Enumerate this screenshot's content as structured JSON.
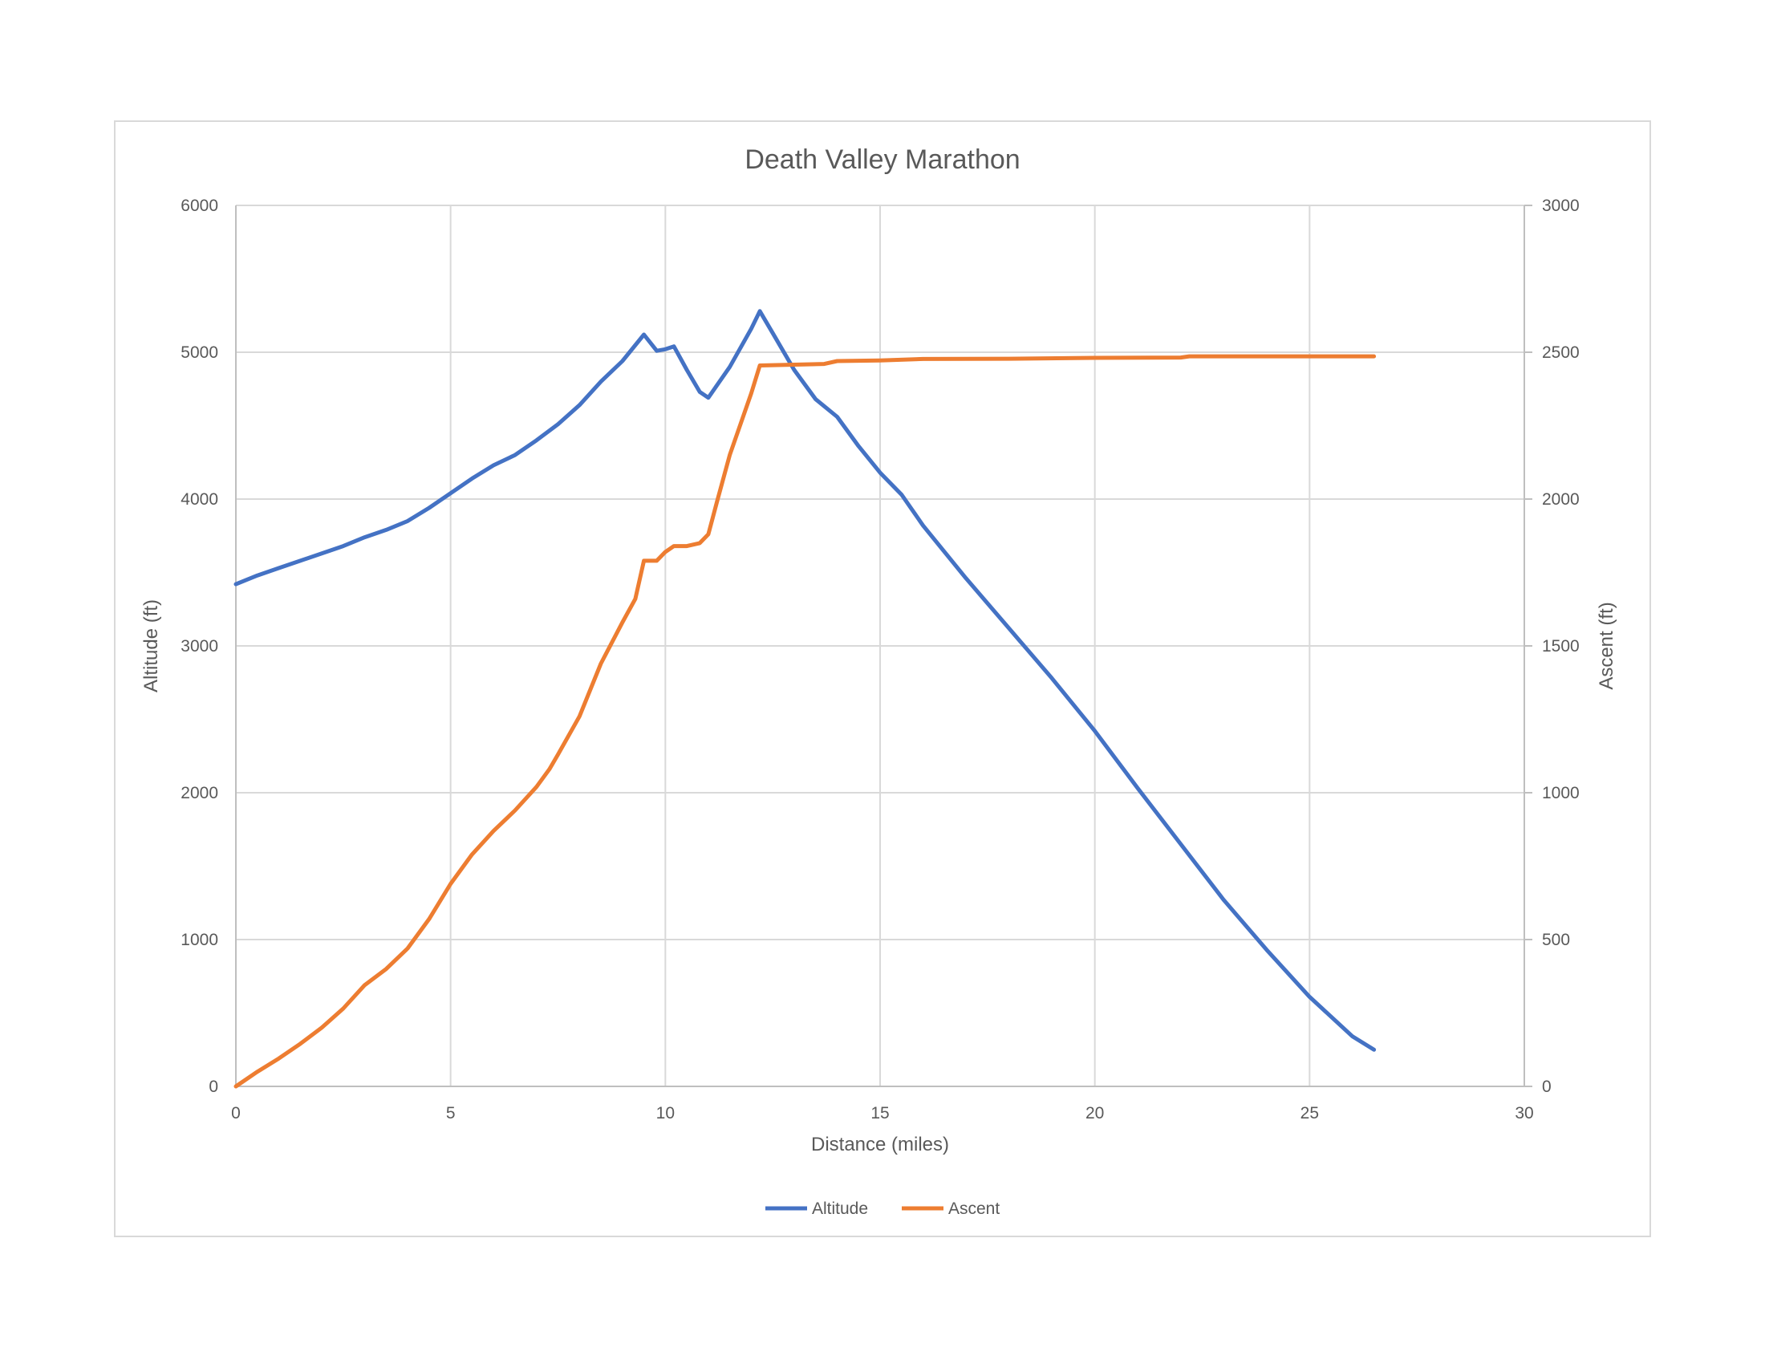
{
  "chart_data": {
    "type": "line",
    "title": "Death Valley Marathon",
    "xlabel": "Distance (miles)",
    "ylabel": "Altitude (ft)",
    "y2label": "Ascent (ft)",
    "xlim": [
      0,
      30
    ],
    "ylim": [
      0,
      6000
    ],
    "y2lim": [
      0,
      3000
    ],
    "x_ticks": [
      "0",
      "5",
      "10",
      "15",
      "20",
      "25",
      "30"
    ],
    "y_ticks": [
      "0",
      "1000",
      "2000",
      "3000",
      "4000",
      "5000",
      "6000"
    ],
    "y2_ticks": [
      "0",
      "500",
      "1000",
      "1500",
      "2000",
      "2500",
      "3000"
    ],
    "grid": true,
    "legend": "bottom",
    "series": [
      {
        "name": "Altitude",
        "axis": "left",
        "color": "#4472C4",
        "x": [
          0,
          0.5,
          1,
          1.5,
          2,
          2.5,
          3,
          3.5,
          4,
          4.5,
          5,
          5.5,
          6,
          6.5,
          7,
          7.5,
          8,
          8.5,
          9,
          9.5,
          9.8,
          10,
          10.2,
          10.5,
          10.8,
          11,
          11.5,
          12,
          12.2,
          12.5,
          13,
          13.5,
          14,
          14.5,
          15,
          15.5,
          16,
          17,
          18,
          19,
          20,
          21,
          22,
          23,
          24,
          25,
          26,
          26.5
        ],
        "y": [
          3420,
          3480,
          3530,
          3580,
          3630,
          3680,
          3740,
          3790,
          3850,
          3940,
          4040,
          4140,
          4230,
          4300,
          4400,
          4510,
          4640,
          4800,
          4940,
          5120,
          5010,
          5020,
          5040,
          4880,
          4730,
          4690,
          4900,
          5160,
          5280,
          5130,
          4880,
          4680,
          4560,
          4360,
          4180,
          4030,
          3820,
          3460,
          3120,
          2780,
          2420,
          2030,
          1650,
          1270,
          930,
          610,
          340,
          250
        ]
      },
      {
        "name": "Ascent",
        "axis": "right",
        "color": "#ED7D31",
        "x": [
          0,
          0.5,
          1,
          1.5,
          2,
          2.5,
          3,
          3.5,
          4,
          4.5,
          5,
          5.5,
          6,
          6.5,
          7,
          7.3,
          7.5,
          8,
          8.5,
          9,
          9.3,
          9.5,
          9.8,
          10,
          10.2,
          10.5,
          10.8,
          11,
          11.2,
          11.5,
          12,
          12.2,
          13.7,
          14,
          15,
          16,
          18,
          20,
          22,
          22.2,
          25,
          26.5
        ],
        "y": [
          0,
          50,
          95,
          145,
          200,
          265,
          345,
          400,
          470,
          570,
          690,
          790,
          870,
          940,
          1020,
          1080,
          1130,
          1260,
          1440,
          1580,
          1660,
          1790,
          1790,
          1820,
          1840,
          1840,
          1850,
          1880,
          1990,
          2150,
          2360,
          2455,
          2460,
          2470,
          2472,
          2477,
          2478,
          2481,
          2482,
          2486,
          2486,
          2486
        ]
      }
    ]
  }
}
